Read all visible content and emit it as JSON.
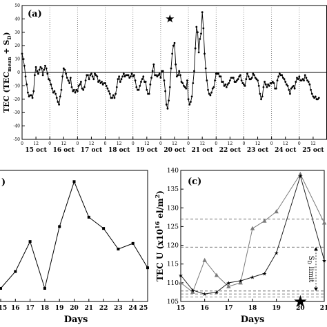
{
  "chart_data": [
    {
      "id": "a",
      "type": "line",
      "panel_label": "(a)",
      "ylabel": "TEC (TEC",
      "ylabel_sub": "mean",
      "ylabel_mid": " + S",
      "ylabel_sub2": "D",
      "ylabel_end": ")",
      "ylim": [
        -50,
        50
      ],
      "yticks": [
        "50",
        "40",
        "30",
        "20",
        "10",
        "0",
        "-10",
        "-20",
        "-30",
        "-40",
        "-50"
      ],
      "xlim": [
        0,
        264
      ],
      "hour_tick_labels": [
        "0",
        "12"
      ],
      "day_labels": [
        "15 oct",
        "16 oct",
        "17 oct",
        "18 oct",
        "19 oct",
        "20 oct",
        "21 oct",
        "22 oct",
        "23 oct",
        "24 oct",
        "25 oct"
      ],
      "star_marker": "★",
      "star_at": {
        "x": 128,
        "y": 40
      },
      "hourly_values": [
        14,
        10,
        5,
        -3,
        -9,
        -15,
        -18,
        -17,
        -17,
        -19,
        -14,
        -2,
        4,
        1,
        -1,
        2,
        4,
        3,
        -2,
        2,
        5,
        3,
        -1,
        -5,
        -6,
        -9,
        -12,
        -15,
        -14,
        -16,
        -19,
        -22,
        -24,
        -18,
        -13,
        -3,
        3,
        2,
        -1,
        -4,
        -6,
        -8,
        -4,
        -11,
        -14,
        -13,
        -15,
        -13,
        -14,
        -10,
        -9,
        -7,
        -12,
        -13,
        -11,
        -6,
        -2,
        -2,
        -5,
        -2,
        -1,
        -3,
        -5,
        -1,
        -2,
        -3,
        -7,
        -6,
        -8,
        -7,
        -9,
        -8,
        -8,
        -10,
        -12,
        -14,
        -16,
        -19,
        -19,
        -17,
        -19,
        -16,
        -11,
        -5,
        -3,
        -7,
        -5,
        -3,
        -1,
        -3,
        -2,
        -2,
        -2,
        -4,
        -3,
        -1,
        -3,
        -2,
        -6,
        -11,
        -13,
        -13,
        -10,
        -7,
        -5,
        -3,
        -7,
        -7,
        -13,
        -16,
        -16,
        -9,
        -4,
        1,
        6,
        -2,
        -2,
        -3,
        -2,
        -1,
        -4,
        1,
        1,
        -6,
        -14,
        -24,
        -27,
        -21,
        -11,
        3,
        14,
        20,
        22,
        6,
        -3,
        -2,
        1,
        -2,
        -7,
        -8,
        -10,
        -11,
        -12,
        -6,
        -20,
        -24,
        -22,
        -18,
        -8,
        1,
        18,
        34,
        30,
        15,
        25,
        29,
        45,
        33,
        14,
        3,
        -6,
        -13,
        -16,
        -17,
        -15,
        -12,
        -11,
        -6,
        -1,
        -1,
        -1,
        -3,
        -3,
        -7,
        -7,
        -10,
        -9,
        -11,
        -9,
        -8,
        -6,
        -4,
        -4,
        -4,
        -7,
        -7,
        -6,
        -5,
        -3,
        -2,
        -6,
        -8,
        -9,
        -10,
        -5,
        -1,
        -3,
        -5,
        -5,
        -4,
        -1,
        -2,
        -4,
        -5,
        -6,
        -10,
        -16,
        -20,
        -18,
        -11,
        -7,
        -9,
        -11,
        -9,
        -10,
        -8,
        -8,
        -7,
        -8,
        -12,
        -12,
        -6,
        -3,
        -1,
        -2,
        -2,
        -4,
        -5,
        -7,
        -9,
        -10,
        -13,
        -16,
        -12,
        -11,
        -10,
        -12,
        -7,
        -4,
        -5,
        -3,
        -6,
        -6,
        -5,
        -6,
        -2,
        -4,
        -6,
        -7,
        -9,
        -13,
        -16,
        -18,
        -19,
        -18,
        -20,
        -20,
        -19
      ]
    },
    {
      "id": "b",
      "type": "line",
      "panel_label": ")",
      "xlabel": "Days",
      "xlim": [
        15,
        25
      ],
      "xticks": [
        "15",
        "16",
        "17",
        "18",
        "19",
        "20",
        "21",
        "22",
        "23",
        "24",
        "25"
      ],
      "ylim": [
        105,
        140
      ],
      "x": [
        15,
        16,
        17,
        18,
        19,
        20,
        21,
        22,
        23,
        24,
        25
      ],
      "values": [
        108.5,
        113,
        121,
        108.5,
        125,
        137,
        127.5,
        124.5,
        119,
        120.5,
        114
      ]
    },
    {
      "id": "c",
      "type": "line",
      "panel_label": "(c)",
      "xlabel": "Days",
      "ylabel": "TEC U (x10",
      "ylabel_sup": "16",
      "ylabel_end": " el/m",
      "ylabel_sup2": "2",
      "ylabel_close": ")",
      "xlim": [
        15,
        21
      ],
      "xticks": [
        "15",
        "16",
        "17",
        "18",
        "19",
        "20",
        "21"
      ],
      "ylim": [
        105,
        140
      ],
      "yticks": [
        "105",
        "110",
        "115",
        "120",
        "125",
        "130",
        "135",
        "140"
      ],
      "series": [
        {
          "marker": "triangle",
          "color": "#7a7a7a",
          "x": [
            15,
            15.5,
            16,
            16.5,
            17,
            17.5,
            18,
            18.5,
            19,
            20,
            21
          ],
          "values": [
            110,
            107.5,
            116,
            112,
            109,
            110,
            124.5,
            126.5,
            129,
            139,
            126
          ]
        },
        {
          "marker": "star",
          "color": "#222222",
          "x": [
            15,
            15.5,
            16,
            16.5,
            17,
            17.5,
            18,
            18.5,
            19,
            20,
            21
          ],
          "values": [
            112,
            108,
            107,
            107.5,
            110,
            110.5,
            111.5,
            112.5,
            118,
            138.5,
            116
          ]
        }
      ],
      "hlines": [
        {
          "y": 127,
          "style": "dashed"
        },
        {
          "y": 119.5,
          "style": "dashed"
        },
        {
          "y": 107.8,
          "style": "dashed"
        },
        {
          "y": 107,
          "style": "dashed"
        },
        {
          "y": 106.2,
          "style": "dashed"
        }
      ],
      "annotation": "S",
      "annotation_sub": "D",
      "annotation_rest": " limit",
      "star_marker": "★",
      "star_at": {
        "x": 20,
        "y": 105
      }
    }
  ]
}
